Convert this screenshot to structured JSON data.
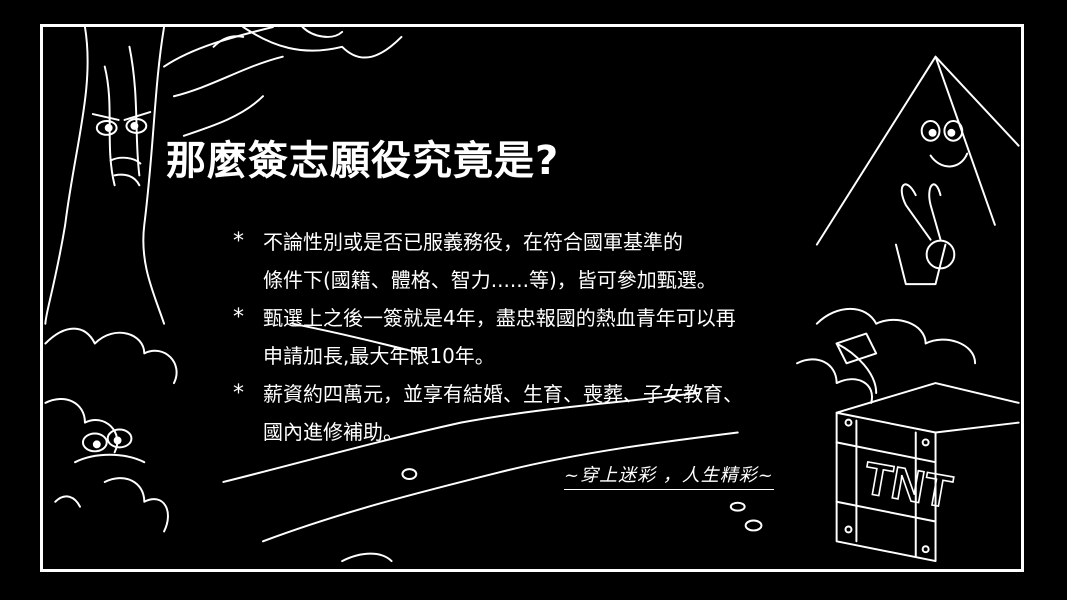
{
  "title": "那麼簽志願役究竟是?",
  "bullet_symbol": "*",
  "bullets": [
    {
      "lines": [
        "不論性別或是否已服義務役，在符合國軍基準的",
        "條件下(國籍、體格、智力......等)，皆可參加甄選。"
      ]
    },
    {
      "lines": [
        "甄選上之後一簽就是4年，盡忠報國的熱血青年可以再",
        "申請加長,最大年限10年。"
      ]
    },
    {
      "lines": [
        "薪資約四萬元，並享有結婚、生育、喪葬、子女教育、",
        "國內進修補助。"
      ]
    }
  ],
  "slogan": "~穿上迷彩 ，人生精彩~",
  "decor": {
    "tnt_label": "TNT",
    "colors": {
      "background": "#000000",
      "line": "#ffffff"
    }
  }
}
